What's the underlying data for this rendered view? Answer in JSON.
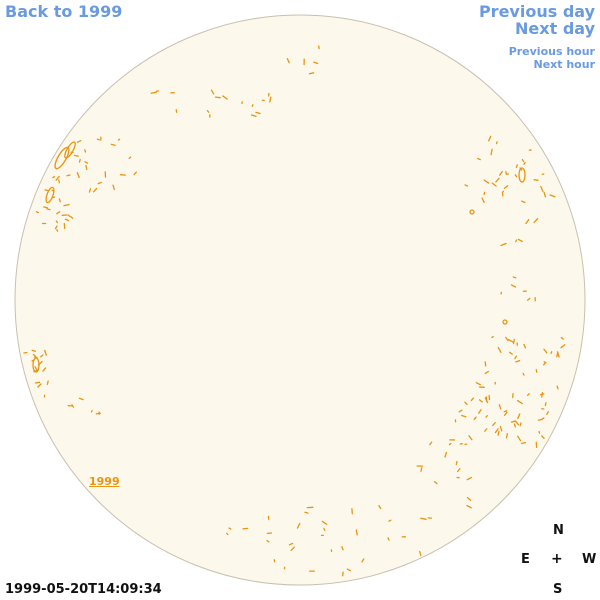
{
  "nav": {
    "back_label": "Back to 1999",
    "prev_day_label": "Previous day",
    "next_day_label": "Next day",
    "prev_hour_label": "Previous hour",
    "next_hour_label": "Next hour"
  },
  "solar_disk": {
    "year_link": "1999",
    "timestamp": "1999-05-20T14:09:34",
    "disk_fill": "#fdf8ec",
    "disk_stroke": "#c8c0b0",
    "contour_color": "#e89410"
  },
  "compass": {
    "north": "N",
    "south": "S",
    "east": "E",
    "west": "W",
    "center": "+"
  },
  "colors": {
    "link": "#6a9ae0",
    "year_link": "#e89410",
    "text": "#111111"
  }
}
